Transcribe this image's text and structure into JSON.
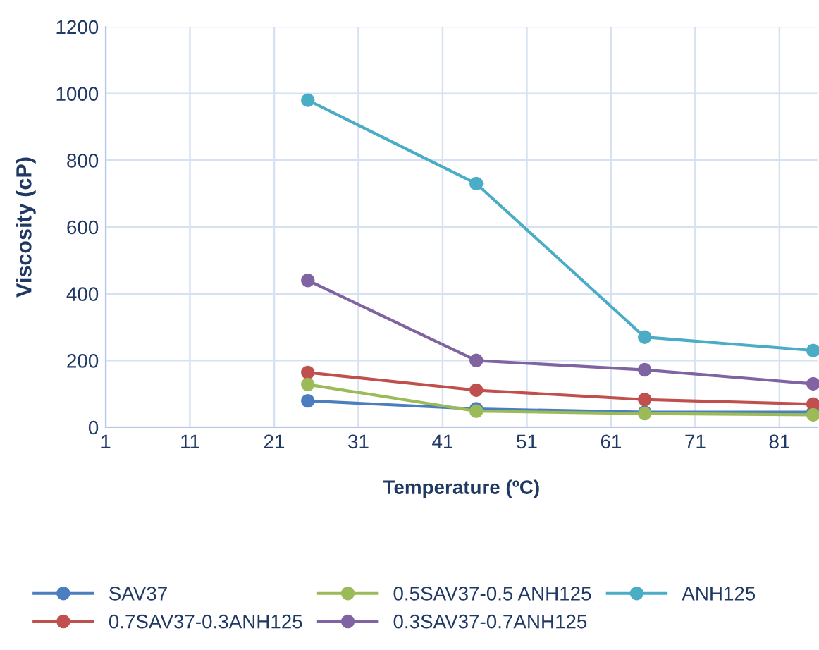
{
  "chart_data": {
    "type": "line",
    "xlabel": "Temperature (ºC)",
    "ylabel": "Viscosity (cP)",
    "x": [
      25,
      45,
      65,
      85
    ],
    "series": [
      {
        "name": "SAV37",
        "color": "#4a7ebf",
        "values": [
          79,
          55,
          45,
          45
        ]
      },
      {
        "name": "0.7SAV37-0.3ANH125",
        "color": "#c0504d",
        "values": [
          164,
          111,
          83,
          69
        ]
      },
      {
        "name": "0.5SAV37-0.5 ANH125",
        "color": "#9bbb59",
        "values": [
          128,
          48,
          41,
          37
        ]
      },
      {
        "name": "0.3SAV37-0.7ANH125",
        "color": "#8064a2",
        "values": [
          440,
          200,
          172,
          130
        ]
      },
      {
        "name": "ANH125",
        "color": "#4bacc6",
        "values": [
          980,
          730,
          270,
          230
        ]
      }
    ],
    "xlim": [
      1,
      85.5
    ],
    "xticks": [
      1,
      11,
      21,
      31,
      41,
      51,
      61,
      71,
      81
    ],
    "ylim": [
      0,
      1200
    ],
    "yticks": [
      0,
      200,
      400,
      600,
      800,
      1000,
      1200
    ],
    "grid": true,
    "legend": "bottom",
    "marker": "circle",
    "line_style": "solid"
  }
}
